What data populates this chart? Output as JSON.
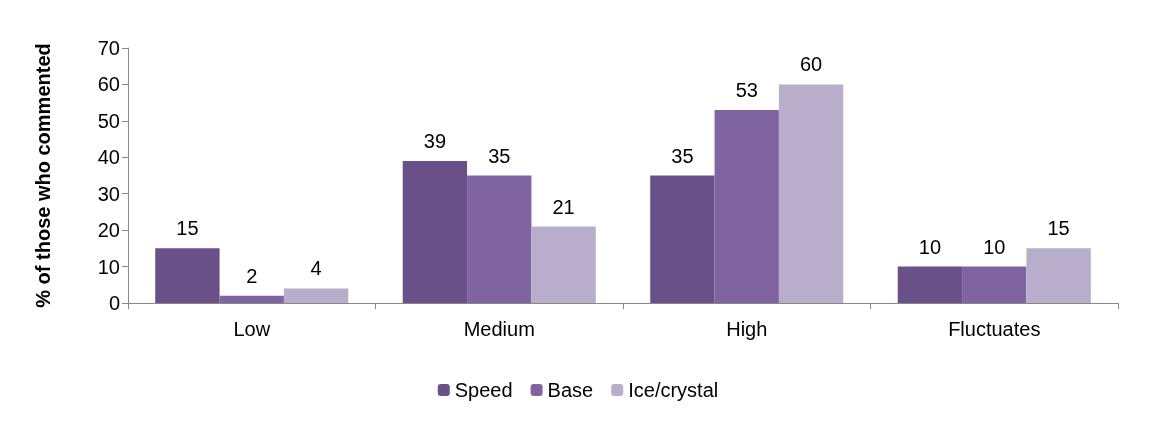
{
  "chart_data": {
    "type": "bar",
    "ylabel": "% of those who commented",
    "categories": [
      "Low",
      "Medium",
      "High",
      "Fluctuates"
    ],
    "series": [
      {
        "name": "Speed",
        "color": "#6a5088",
        "values": [
          15,
          39,
          35,
          10
        ]
      },
      {
        "name": "Base",
        "color": "#8064a2",
        "values": [
          2,
          35,
          53,
          10
        ]
      },
      {
        "name": "Ice/crystal",
        "color": "#b8aecb",
        "values": [
          4,
          21,
          60,
          15
        ]
      }
    ],
    "ylim": [
      0,
      70
    ],
    "yticks": [
      0,
      10,
      20,
      30,
      40,
      50,
      60,
      70
    ],
    "grid": false,
    "legend": "bottom",
    "data_labels": true
  }
}
